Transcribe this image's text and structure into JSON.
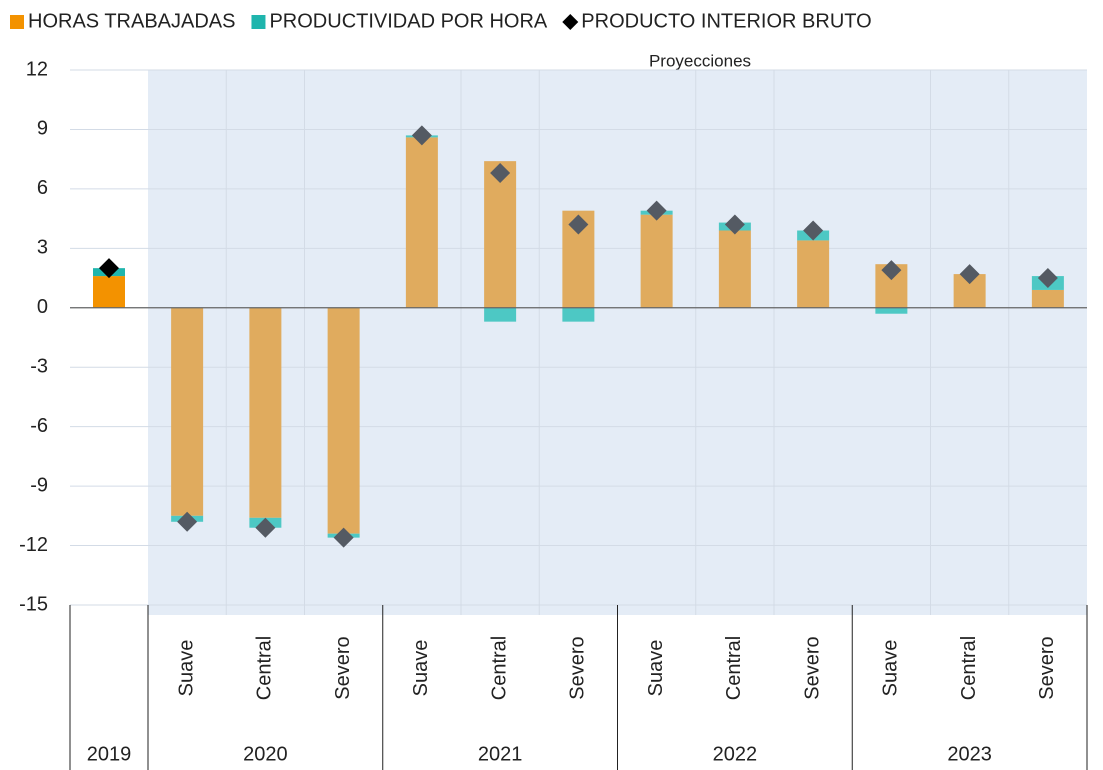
{
  "chart_data": {
    "type": "bar",
    "annotation": "Proyecciones",
    "groups": [
      {
        "name": "2019",
        "categories": [
          null
        ]
      },
      {
        "name": "2020",
        "categories": [
          "Suave",
          "Central",
          "Severo"
        ]
      },
      {
        "name": "2021",
        "categories": [
          "Suave",
          "Central",
          "Severo"
        ]
      },
      {
        "name": "2022",
        "categories": [
          "Suave",
          "Central",
          "Severo"
        ]
      },
      {
        "name": "2023",
        "categories": [
          "Suave",
          "Central",
          "Severo"
        ]
      }
    ],
    "series": [
      {
        "name": "HORAS TRABAJADAS",
        "kind": "bar",
        "color": "#f39200",
        "colors": [
          "#f39200",
          "#e0ab5e",
          "#e0ab5e",
          "#e0ab5e",
          "#e0ab5e",
          "#e0ab5e",
          "#e0ab5e",
          "#e0ab5e",
          "#e0ab5e",
          "#e0ab5e",
          "#e0ab5e",
          "#e0ab5e",
          "#e0ab5e"
        ],
        "values": [
          1.6,
          -10.5,
          -10.6,
          -11.4,
          8.6,
          7.4,
          4.9,
          4.7,
          3.9,
          3.4,
          2.2,
          1.7,
          0.9
        ]
      },
      {
        "name": "PRODUCTIVIDAD POR HORA",
        "kind": "bar",
        "color": "#1fb5ad",
        "colors": [
          "#1fb5ad",
          "#4dc8c4",
          "#4dc8c4",
          "#4dc8c4",
          "#4dc8c4",
          "#4dc8c4",
          "#4dc8c4",
          "#4dc8c4",
          "#4dc8c4",
          "#4dc8c4",
          "#4dc8c4",
          "#4dc8c4",
          "#4dc8c4"
        ],
        "values": [
          0.4,
          -0.3,
          -0.5,
          -0.2,
          0.1,
          -0.7,
          -0.7,
          0.2,
          0.4,
          0.5,
          -0.3,
          0.0,
          0.7
        ]
      },
      {
        "name": "PRODUCTO INTERIOR BRUTO",
        "kind": "marker",
        "color": "#000000",
        "colors": [
          "#000000",
          "#545a63",
          "#545a63",
          "#545a63",
          "#545a63",
          "#545a63",
          "#545a63",
          "#545a63",
          "#545a63",
          "#545a63",
          "#545a63",
          "#545a63",
          "#545a63"
        ],
        "values": [
          2.0,
          -10.8,
          -11.1,
          -11.6,
          8.7,
          6.8,
          4.2,
          4.9,
          4.2,
          3.9,
          1.9,
          1.7,
          1.5
        ]
      }
    ],
    "ylim": [
      -15,
      12
    ],
    "yticks": [
      -15,
      -12,
      -9,
      -6,
      -3,
      0,
      3,
      6,
      9,
      12
    ],
    "grid": true
  }
}
